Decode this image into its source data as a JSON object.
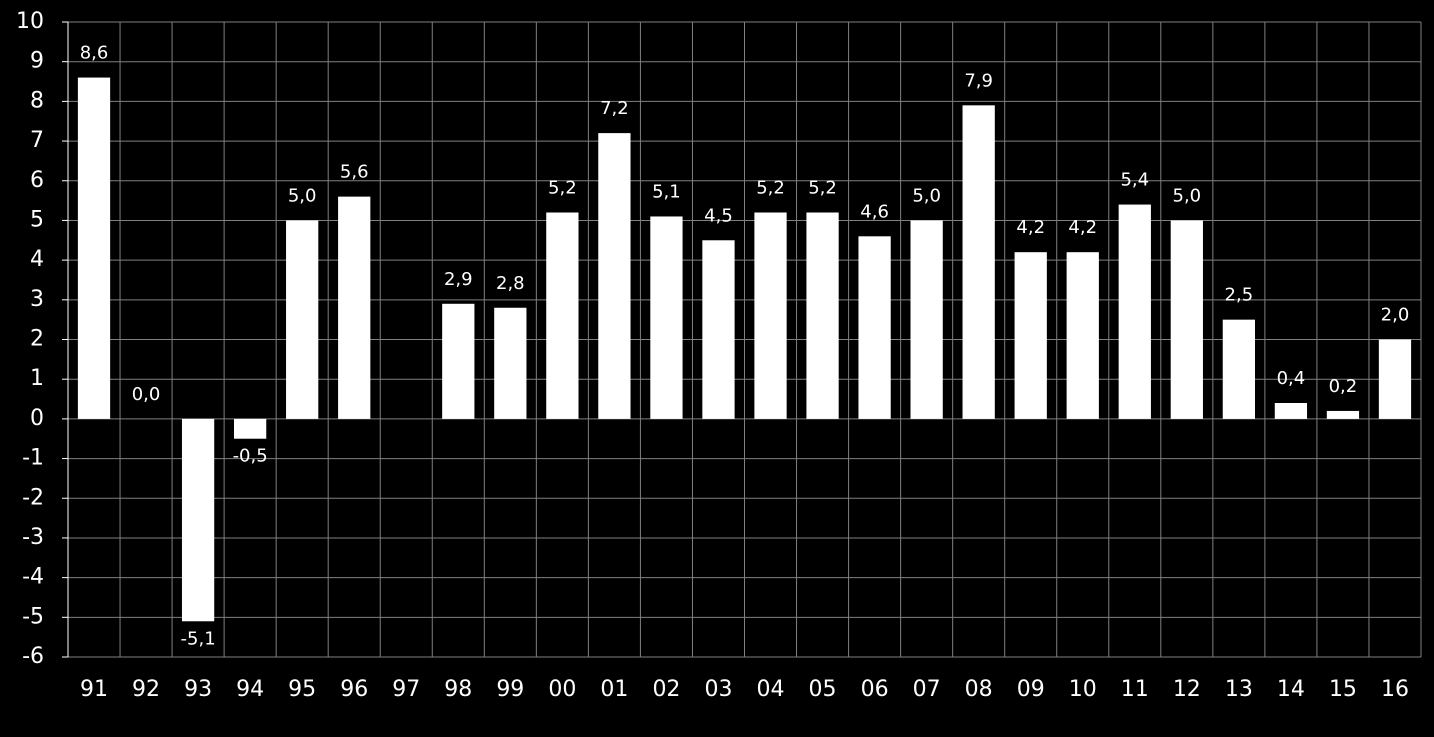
{
  "chart_data": {
    "type": "bar",
    "categories": [
      "91",
      "92",
      "93",
      "94",
      "95",
      "96",
      "97",
      "98",
      "99",
      "00",
      "01",
      "02",
      "03",
      "04",
      "05",
      "06",
      "07",
      "08",
      "09",
      "10",
      "11",
      "12",
      "13",
      "14",
      "15",
      "16"
    ],
    "values": [
      8.6,
      0.0,
      -5.1,
      -0.5,
      5.0,
      5.6,
      null,
      2.9,
      2.8,
      5.2,
      7.2,
      5.1,
      4.5,
      5.2,
      5.2,
      4.6,
      5.0,
      7.9,
      4.2,
      4.2,
      5.4,
      5.0,
      2.5,
      0.4,
      0.2,
      2.0
    ],
    "value_labels": [
      "8,6",
      "0,0",
      "-5,1",
      "-0,5",
      "5,0",
      "5,6",
      null,
      "2,9",
      "2,8",
      "5,2",
      "7,2",
      "5,1",
      "4,5",
      "5,2",
      "5,2",
      "4,6",
      "5,0",
      "7,9",
      "4,2",
      "4,2",
      "5,4",
      "5,0",
      "2,5",
      "0,4",
      "0,2",
      "2,0"
    ],
    "color": "#ffffff",
    "ylim": [
      -6,
      10
    ],
    "yticks": [
      -6,
      -5,
      -4,
      -3,
      -2,
      -1,
      0,
      1,
      2,
      3,
      4,
      5,
      6,
      7,
      8,
      9,
      10
    ],
    "grid": true
  }
}
